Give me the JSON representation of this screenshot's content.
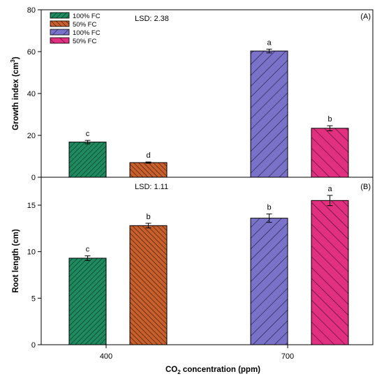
{
  "colors": {
    "green": "#1f8a5f",
    "brown": "#c8602d",
    "purple": "#7a72c8",
    "pink": "#e0307f"
  },
  "xlabel": {
    "pre": "CO",
    "sub": "2",
    "post": " concentration (ppm)"
  },
  "x_tick_labels": [
    "400",
    "700"
  ],
  "legend": [
    {
      "label": "100% FC",
      "color": "green"
    },
    {
      "label": "50% FC",
      "color": "brown"
    },
    {
      "label": "100% FC",
      "color": "purple"
    },
    {
      "label": "50% FC",
      "color": "pink"
    }
  ],
  "chart_data": [
    {
      "type": "bar",
      "panel": "(A)",
      "ylabel": "Growth index (cm3)",
      "ylabel_parts": {
        "main": "Growth index (cm",
        "sup": "3",
        "close": ")"
      },
      "ylim": [
        0,
        80
      ],
      "yticks": [
        0,
        20,
        40,
        60,
        80
      ],
      "lsd": "LSD: 2.38",
      "categories": [
        "400",
        "700"
      ],
      "series": [
        {
          "name": "100% FC",
          "color": "green",
          "values": [
            16.8,
            60.3
          ],
          "errors": [
            0.8,
            0.9
          ],
          "letters": [
            "c",
            "a"
          ]
        },
        {
          "name": "50% FC",
          "color": "brown",
          "values": [
            7.0,
            23.4
          ],
          "errors": [
            0.3,
            1.2
          ],
          "letters": [
            "d",
            "b"
          ]
        }
      ]
    },
    {
      "type": "bar",
      "panel": "(B)",
      "ylabel": "Root length (cm)",
      "ylim": [
        0,
        18
      ],
      "yticks": [
        0,
        5,
        10,
        15
      ],
      "lsd": "LSD: 1.11",
      "categories": [
        "400",
        "700"
      ],
      "series": [
        {
          "name": "100% FC",
          "color": "green",
          "values": [
            9.3,
            13.6
          ],
          "errors": [
            0.25,
            0.45
          ],
          "letters": [
            "c",
            "b"
          ]
        },
        {
          "name": "50% FC",
          "color": "brown",
          "values": [
            12.8,
            15.5
          ],
          "errors": [
            0.25,
            0.55
          ],
          "letters": [
            "b",
            "a"
          ]
        }
      ]
    }
  ]
}
